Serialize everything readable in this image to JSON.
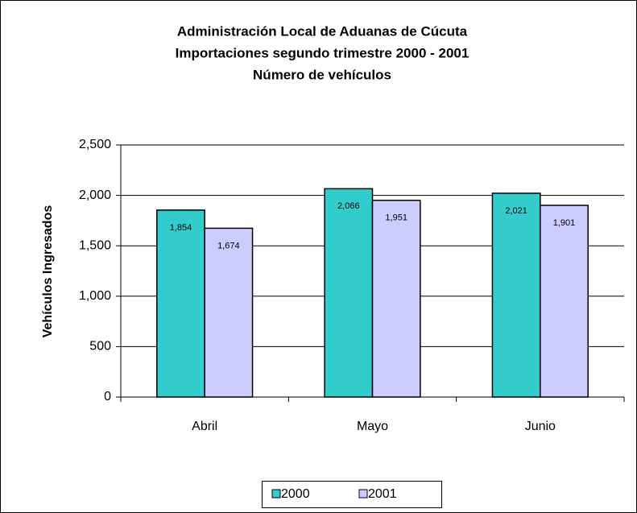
{
  "chart_data": {
    "type": "bar",
    "title": [
      "Administración Local de Aduanas de Cúcuta",
      "Importaciones segundo trimestre 2000 - 2001",
      "Número de vehículos"
    ],
    "y_label": "Vehículos Ingresados",
    "categories": [
      "Abril",
      "Mayo",
      "Junio"
    ],
    "series": [
      {
        "name": "2000",
        "color": "#33cccc",
        "values": [
          1854,
          2066,
          2021
        ],
        "value_labels": [
          "1,854",
          "2,066",
          "2,021"
        ]
      },
      {
        "name": "2001",
        "color": "#ccccff",
        "values": [
          1674,
          1951,
          1901
        ],
        "value_labels": [
          "1,674",
          "1,951",
          "1,901"
        ]
      }
    ],
    "ylim": [
      0,
      2500
    ],
    "yticks": [
      0,
      500,
      {
        "value": 1000,
        "label": "1,000"
      },
      {
        "value": 1500,
        "label": "1,500"
      },
      {
        "value": 2000,
        "label": "2,000"
      },
      {
        "value": 2500,
        "label": "2,500"
      }
    ],
    "grid": true,
    "legend": "bottom"
  }
}
